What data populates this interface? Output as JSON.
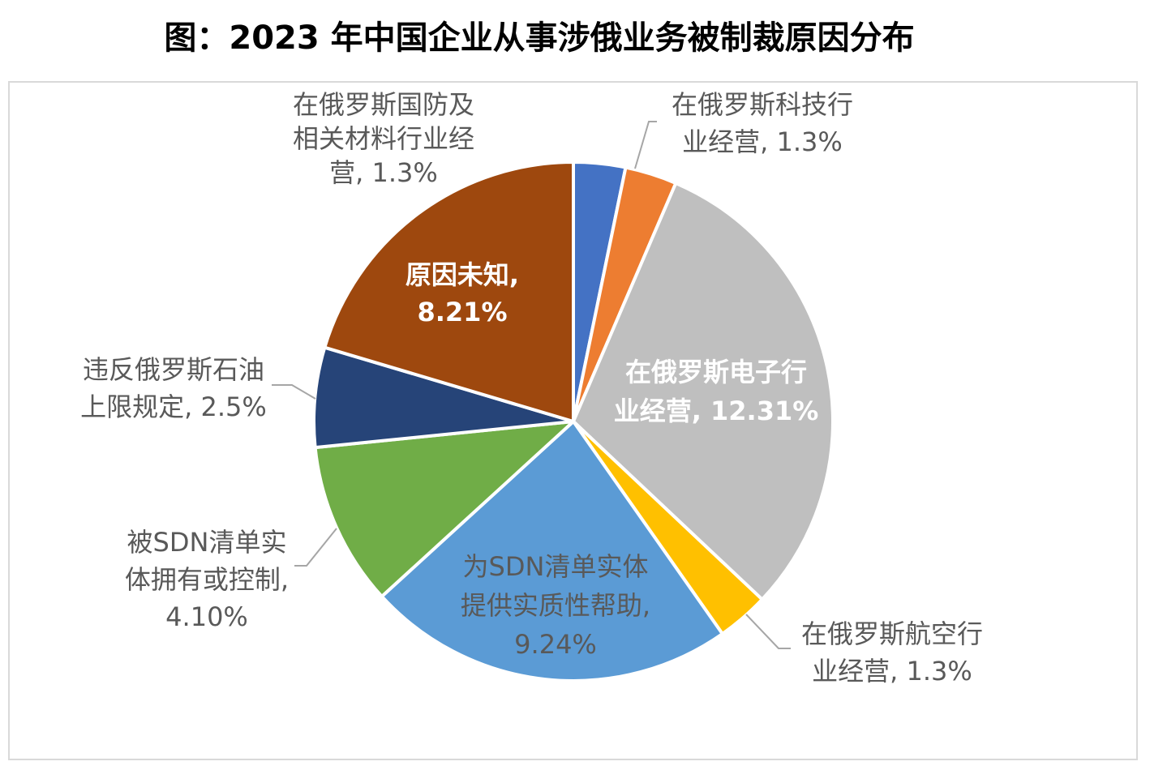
{
  "title": "图：2023 年中国企业从事涉俄业务被制裁原因分布",
  "chart_data": {
    "type": "pie",
    "title": "图：2023 年中国企业从事涉俄业务被制裁原因分布",
    "unit": "%",
    "slices": [
      {
        "label": "在俄罗斯国防及相关材料行业经营",
        "label_lines": [
          "在俄罗斯国防及",
          "相关材料行业经",
          "营, 1.3%"
        ],
        "value": 1.3,
        "color": "#4472c4",
        "label_color": "#595959"
      },
      {
        "label": "在俄罗斯科技行业经营",
        "label_lines": [
          "在俄罗斯科技行",
          "业经营, 1.3%"
        ],
        "value": 1.3,
        "color": "#ed7d31",
        "label_color": "#595959"
      },
      {
        "label": "在俄罗斯电子行业经营",
        "label_lines": [
          "在俄罗斯电子行",
          "业经营, 12.31%"
        ],
        "value": 12.31,
        "color": "#bfbfbf",
        "label_color": "#ffffff"
      },
      {
        "label": "在俄罗斯航空行业经营",
        "label_lines": [
          "在俄罗斯航空行",
          "业经营, 1.3%"
        ],
        "value": 1.3,
        "color": "#ffc000",
        "label_color": "#595959"
      },
      {
        "label": "为SDN清单实体提供实质性帮助",
        "label_lines": [
          "为SDN清单实体",
          "提供实质性帮助,",
          "9.24%"
        ],
        "value": 9.24,
        "color": "#5b9bd5",
        "label_color": "#595959"
      },
      {
        "label": "被SDN清单实体拥有或控制",
        "label_lines": [
          "被SDN清单实",
          "体拥有或控制,",
          "4.10%"
        ],
        "value": 4.1,
        "color": "#70ad47",
        "label_color": "#595959"
      },
      {
        "label": "违反俄罗斯石油上限规定",
        "label_lines": [
          "违反俄罗斯石油",
          "上限规定, 2.5%"
        ],
        "value": 2.5,
        "color": "#264478",
        "label_color": "#595959"
      },
      {
        "label": "原因未知",
        "label_lines": [
          "原因未知,",
          "8.21%"
        ],
        "value": 8.21,
        "color": "#9e480e",
        "label_color": "#ffffff"
      }
    ]
  }
}
